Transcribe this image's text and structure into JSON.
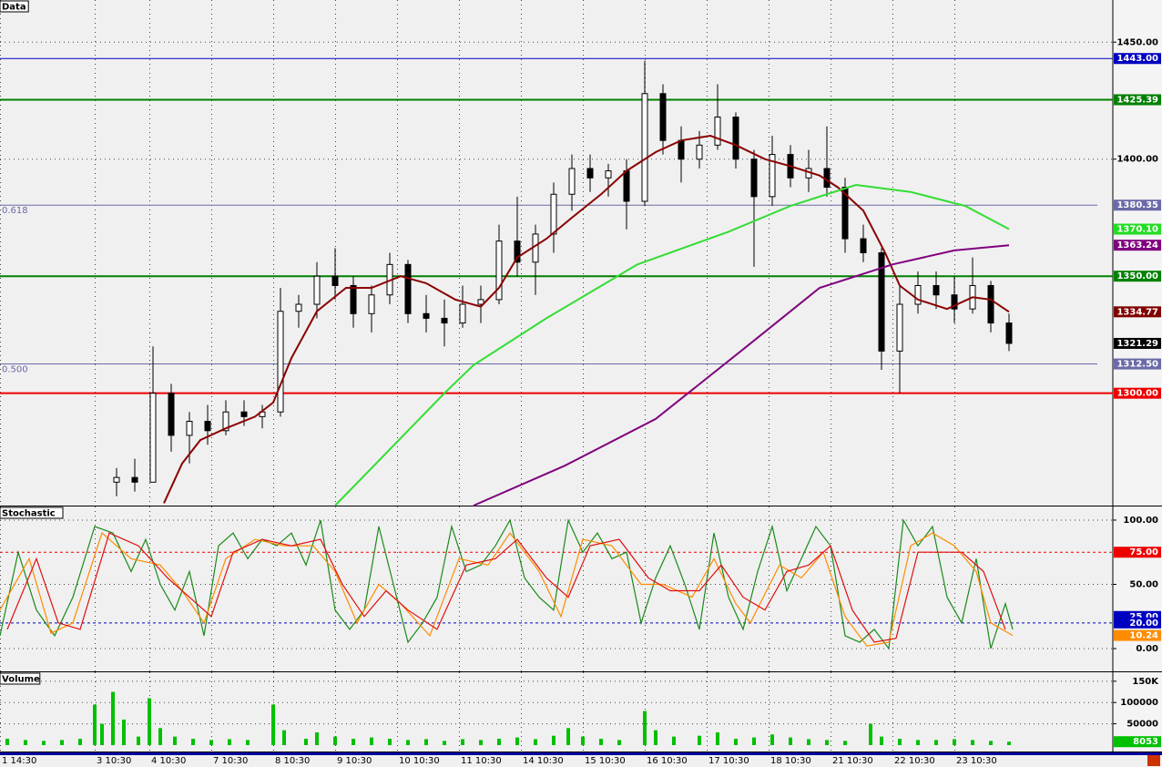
{
  "chart_data": [
    {
      "type": "candlestick",
      "title": "Data",
      "x": [
        32,
        37,
        42,
        47,
        52,
        57,
        62,
        67,
        72,
        77,
        82,
        87,
        92,
        97,
        102,
        107,
        112,
        117,
        122,
        127,
        132,
        137,
        142,
        147,
        152,
        157,
        162,
        167,
        172,
        177,
        182,
        187,
        192,
        197,
        202,
        207,
        212,
        217,
        222,
        227,
        232,
        237,
        242,
        247,
        252,
        257,
        262,
        267,
        272,
        277
      ],
      "open": [
        1262,
        1264,
        1262,
        1300,
        1282,
        1288,
        1284,
        1292,
        1290,
        1292,
        1335,
        1338,
        1350,
        1346,
        1334,
        1342,
        1355,
        1334,
        1332,
        1330,
        1338,
        1340,
        1365,
        1356,
        1368,
        1385,
        1396,
        1392,
        1395,
        1382,
        1428,
        1408,
        1400,
        1406,
        1418,
        1400,
        1384,
        1402,
        1392,
        1396,
        1388,
        1366,
        1360,
        1318,
        1338,
        1346,
        1342,
        1336,
        1346,
        1330
      ],
      "high": [
        1268,
        1272,
        1320,
        1304,
        1292,
        1295,
        1297,
        1297,
        1295,
        1345,
        1342,
        1356,
        1362,
        1350,
        1346,
        1360,
        1357,
        1342,
        1340,
        1346,
        1346,
        1372,
        1384,
        1372,
        1390,
        1402,
        1402,
        1398,
        1400,
        1442,
        1432,
        1414,
        1412,
        1432,
        1420,
        1404,
        1410,
        1406,
        1404,
        1414,
        1392,
        1372,
        1362,
        1346,
        1352,
        1352,
        1350,
        1358,
        1348,
        1334
      ],
      "low": [
        1256,
        1258,
        1262,
        1275,
        1270,
        1278,
        1282,
        1286,
        1285,
        1290,
        1328,
        1332,
        1340,
        1328,
        1326,
        1338,
        1330,
        1326,
        1320,
        1328,
        1330,
        1338,
        1350,
        1342,
        1360,
        1378,
        1386,
        1384,
        1370,
        1380,
        1402,
        1390,
        1396,
        1404,
        1396,
        1354,
        1380,
        1388,
        1386,
        1384,
        1360,
        1356,
        1310,
        1300,
        1334,
        1336,
        1330,
        1334,
        1326,
        1318
      ],
      "close": [
        1264,
        1262,
        1300,
        1282,
        1288,
        1284,
        1292,
        1290,
        1292,
        1335,
        1338,
        1350,
        1346,
        1334,
        1342,
        1355,
        1334,
        1332,
        1330,
        1338,
        1340,
        1365,
        1356,
        1368,
        1385,
        1396,
        1392,
        1395,
        1382,
        1428,
        1408,
        1400,
        1406,
        1418,
        1400,
        1384,
        1402,
        1392,
        1396,
        1388,
        1366,
        1360,
        1318,
        1338,
        1346,
        1342,
        1336,
        1346,
        1330,
        1321.29
      ],
      "up_color": "#ffffff",
      "down_color": "#000000",
      "series": [
        {
          "color": "#8b0000",
          "x": [
            45,
            50,
            55,
            62,
            70,
            75,
            80,
            87,
            95,
            102,
            110,
            117,
            125,
            132,
            137,
            142,
            150,
            157,
            165,
            172,
            180,
            187,
            195,
            202,
            210,
            217,
            225,
            230,
            237,
            243,
            247,
            252,
            260,
            267,
            272,
            277
          ],
          "values": [
            1253,
            1270,
            1280,
            1285,
            1290,
            1296,
            1315,
            1335,
            1345,
            1345,
            1350,
            1347,
            1340,
            1337,
            1345,
            1358,
            1366,
            1375,
            1385,
            1395,
            1403,
            1408,
            1410,
            1406,
            1400,
            1397,
            1393,
            1388,
            1378,
            1360,
            1346,
            1340,
            1336,
            1341,
            1340,
            1334.77
          ]
        },
        {
          "color": "#33dd33",
          "x": [
            92,
            122,
            130,
            150,
            175,
            200,
            217,
            235,
            250,
            265,
            277
          ],
          "values": [
            1252,
            1300,
            1312,
            1332,
            1355,
            1369,
            1380,
            1389,
            1386,
            1380,
            1370.1
          ]
        },
        {
          "color": "#800080",
          "x": [
            130,
            155,
            180,
            205,
            225,
            245,
            262,
            277
          ],
          "values": [
            1252,
            1269,
            1289,
            1320,
            1345,
            1355,
            1361,
            1363.24
          ]
        }
      ],
      "ylim": [
        1252,
        1468
      ],
      "yticks": [
        {
          "value": 1450,
          "label": "1450.00"
        },
        {
          "value": 1400,
          "label": "1400.00"
        }
      ],
      "grid": true,
      "levels": [
        {
          "value": 1443,
          "label": "1443.00",
          "color": "#0000c0",
          "line": true
        },
        {
          "value": 1425.39,
          "label": "1425.39",
          "color": "#008000",
          "line": true
        },
        {
          "value": 1380.35,
          "label": "1380.35",
          "color": "#6a6aa8",
          "line": true,
          "tag": "0.618"
        },
        {
          "value": 1370.1,
          "label": "1370.10",
          "color": "#22dd22",
          "line": false
        },
        {
          "value": 1363.24,
          "label": "1363.24",
          "color": "#800080",
          "line": false
        },
        {
          "value": 1350,
          "label": "1350.00",
          "color": "#008000",
          "line": true
        },
        {
          "value": 1334.77,
          "label": "1334.77",
          "color": "#800000",
          "line": false
        },
        {
          "value": 1321.29,
          "label": "1321.29",
          "color": "#000000",
          "line": false
        },
        {
          "value": 1312.5,
          "label": "1312.50",
          "color": "#6a6aa8",
          "line": true,
          "tag": "0.500"
        },
        {
          "value": 1300,
          "label": "1300.00",
          "color": "#ee0000",
          "line": true
        }
      ]
    },
    {
      "type": "line",
      "title": "Stochastic",
      "series": [
        {
          "color": "#1a8a1a",
          "x": [
            0,
            5,
            10,
            15,
            20,
            26,
            31,
            36,
            40,
            44,
            48,
            52,
            56,
            60,
            64,
            68,
            72,
            76,
            80,
            84,
            88,
            92,
            96,
            100,
            104,
            108,
            112,
            116,
            120,
            124,
            128,
            132,
            136,
            140,
            144,
            148,
            152,
            156,
            160,
            164,
            168,
            172,
            176,
            180,
            184,
            188,
            192,
            196,
            200,
            204,
            208,
            212,
            216,
            220,
            224,
            228,
            232,
            236,
            240,
            244,
            248,
            252,
            256,
            260,
            264,
            268,
            272,
            276,
            278
          ],
          "values": [
            10,
            75,
            30,
            10,
            40,
            95,
            90,
            60,
            85,
            50,
            30,
            60,
            10,
            80,
            90,
            70,
            85,
            80,
            90,
            65,
            100,
            30,
            15,
            30,
            95,
            50,
            5,
            20,
            40,
            95,
            60,
            65,
            80,
            100,
            55,
            40,
            30,
            100,
            75,
            90,
            70,
            75,
            20,
            55,
            80,
            50,
            15,
            90,
            40,
            15,
            60,
            95,
            45,
            70,
            95,
            80,
            10,
            5,
            15,
            0,
            100,
            80,
            95,
            40,
            20,
            70,
            0,
            35,
            15
          ]
        },
        {
          "color": "#ff8c00",
          "x": [
            0,
            8,
            14,
            20,
            28,
            36,
            44,
            50,
            56,
            62,
            70,
            78,
            86,
            92,
            98,
            104,
            110,
            118,
            126,
            134,
            140,
            148,
            154,
            160,
            168,
            176,
            182,
            190,
            196,
            202,
            206,
            214,
            220,
            226,
            232,
            238,
            244,
            250,
            256,
            262,
            268,
            272,
            278
          ],
          "values": [
            30,
            70,
            12,
            20,
            90,
            70,
            65,
            45,
            20,
            70,
            85,
            80,
            80,
            60,
            20,
            50,
            35,
            10,
            70,
            65,
            90,
            60,
            25,
            85,
            80,
            50,
            50,
            40,
            70,
            35,
            20,
            65,
            55,
            75,
            25,
            2,
            5,
            80,
            90,
            80,
            60,
            20,
            10.24
          ]
        },
        {
          "color": "#e01010",
          "x": [
            2,
            10,
            16,
            22,
            30,
            38,
            46,
            52,
            58,
            64,
            72,
            80,
            88,
            94,
            100,
            106,
            112,
            120,
            128,
            136,
            142,
            150,
            156,
            162,
            170,
            178,
            184,
            192,
            198,
            204,
            210,
            216,
            222,
            228,
            234,
            240,
            246,
            252,
            258,
            264,
            270,
            276
          ],
          "values": [
            15,
            70,
            20,
            15,
            90,
            80,
            55,
            40,
            25,
            75,
            85,
            80,
            85,
            50,
            25,
            45,
            30,
            15,
            65,
            70,
            85,
            55,
            40,
            80,
            85,
            55,
            45,
            45,
            65,
            40,
            30,
            60,
            65,
            80,
            30,
            5,
            8,
            75,
            75,
            75,
            60,
            15
          ]
        }
      ],
      "ylim": [
        -17.7,
        110.6
      ],
      "yticks": [
        {
          "value": 100,
          "label": "100.00"
        },
        {
          "value": 50,
          "label": "50.00"
        },
        {
          "value": 0,
          "label": "0.00"
        }
      ],
      "grid": true,
      "levels": [
        {
          "value": 75,
          "label": "75.00",
          "color": "#ee0000",
          "line": true
        },
        {
          "value": 25,
          "label": "25.00",
          "color": "#0000c0",
          "line": false
        },
        {
          "value": 20,
          "label": "20.00",
          "color": "#0000c0",
          "line": true
        },
        {
          "value": 10.24,
          "label": "10.24",
          "color": "#ff8c00",
          "line": false
        }
      ]
    },
    {
      "type": "bar",
      "title": "Volume",
      "color": "#00c000",
      "x": [
        2,
        7,
        12,
        17,
        22,
        26,
        28,
        31,
        34,
        38,
        41,
        44,
        48,
        53,
        58,
        63,
        68,
        75,
        78,
        84,
        87,
        92,
        97,
        102,
        107,
        112,
        117,
        122,
        127,
        132,
        137,
        142,
        147,
        152,
        156,
        160,
        165,
        170,
        177,
        180,
        185,
        192,
        197,
        202,
        207,
        212,
        217,
        222,
        227,
        232,
        239,
        242,
        247,
        252,
        257,
        262,
        267,
        272,
        277
      ],
      "values": [
        15000,
        12000,
        10000,
        12000,
        15000,
        95000,
        50000,
        125000,
        60000,
        20000,
        110000,
        40000,
        20000,
        15000,
        12000,
        14000,
        12000,
        95000,
        35000,
        15000,
        30000,
        20000,
        15000,
        18000,
        15000,
        12000,
        14000,
        10000,
        14000,
        12000,
        15000,
        18000,
        14000,
        22000,
        40000,
        20000,
        15000,
        12000,
        80000,
        35000,
        20000,
        22000,
        30000,
        15000,
        18000,
        25000,
        18000,
        14000,
        12000,
        10000,
        50000,
        20000,
        15000,
        12000,
        12000,
        14000,
        12000,
        10000,
        8053
      ],
      "ylim": [
        -15000,
        171000
      ],
      "yticks": [
        {
          "value": 150000,
          "label": "150K"
        },
        100000,
        50000
      ],
      "grid": true,
      "levels": [
        {
          "value": 8053,
          "label": "8053",
          "color": "#00c000",
          "line": false
        }
      ],
      "xlim": [
        0,
        305.5
      ],
      "xticks": [
        {
          "value": 0,
          "label": "1 14:30"
        },
        {
          "value": 26,
          "label": "3 10:30"
        },
        {
          "value": 41,
          "label": "4 10:30"
        },
        {
          "value": 58,
          "label": "7 10:30"
        },
        {
          "value": 75,
          "label": "8 10:30"
        },
        {
          "value": 92,
          "label": "9 10:30"
        },
        {
          "value": 109,
          "label": "10 10:30"
        },
        {
          "value": 126,
          "label": "11 10:30"
        },
        {
          "value": 143,
          "label": "14 10:30"
        },
        {
          "value": 160,
          "label": "15 10:30"
        },
        {
          "value": 177,
          "label": "16 10:30"
        },
        {
          "value": 194,
          "label": "17 10:30"
        },
        {
          "value": 211,
          "label": "18 10:30"
        },
        {
          "value": 228,
          "label": "21 10:30"
        },
        {
          "value": 245,
          "label": "22 10:30"
        },
        {
          "value": 262,
          "label": "23 10:30"
        }
      ]
    }
  ]
}
